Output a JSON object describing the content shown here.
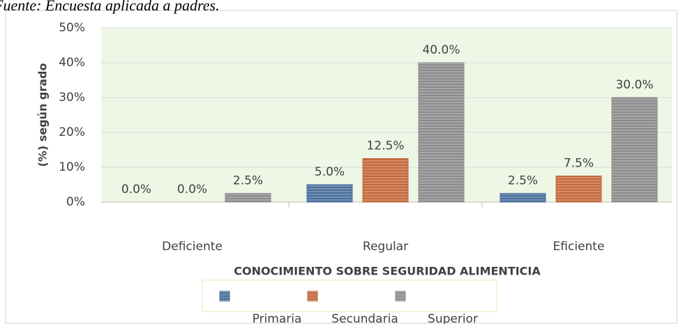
{
  "chart_data": {
    "type": "bar",
    "title": "Fuente: Encuesta aplicada a padres.",
    "y_label": "(%) según grado",
    "x_label": "CONOCIMIENTO SOBRE SEGURIDAD ALIMENTICIA",
    "categories": [
      "Deficiente",
      "Regular",
      "Eficiente"
    ],
    "series": [
      {
        "name": "Primaria",
        "color": "#4a6f9c",
        "values": [
          0,
          5,
          2.5
        ],
        "value_labels": [
          "0.0%",
          "5.0%",
          "2.5%"
        ]
      },
      {
        "name": "Secundaria",
        "color": "#c4693c",
        "values": [
          0,
          12.5,
          7.5
        ],
        "value_labels": [
          "0.0%",
          "12.5%",
          "7.5%"
        ]
      },
      {
        "name": "Superior",
        "color": "#8c8c8c",
        "values": [
          2.5,
          40,
          30
        ],
        "value_labels": [
          "2.5%",
          "40.0%",
          "30.0%"
        ]
      }
    ],
    "ylim": [
      0,
      50
    ],
    "yticks": [
      {
        "value": 0,
        "label": "0%"
      },
      {
        "value": 10,
        "label": "10%"
      },
      {
        "value": 20,
        "label": "20%"
      },
      {
        "value": 30,
        "label": "30%"
      },
      {
        "value": 40,
        "label": "40%"
      },
      {
        "value": 50,
        "label": "50%"
      }
    ],
    "grid": true,
    "legend": "bottom"
  }
}
